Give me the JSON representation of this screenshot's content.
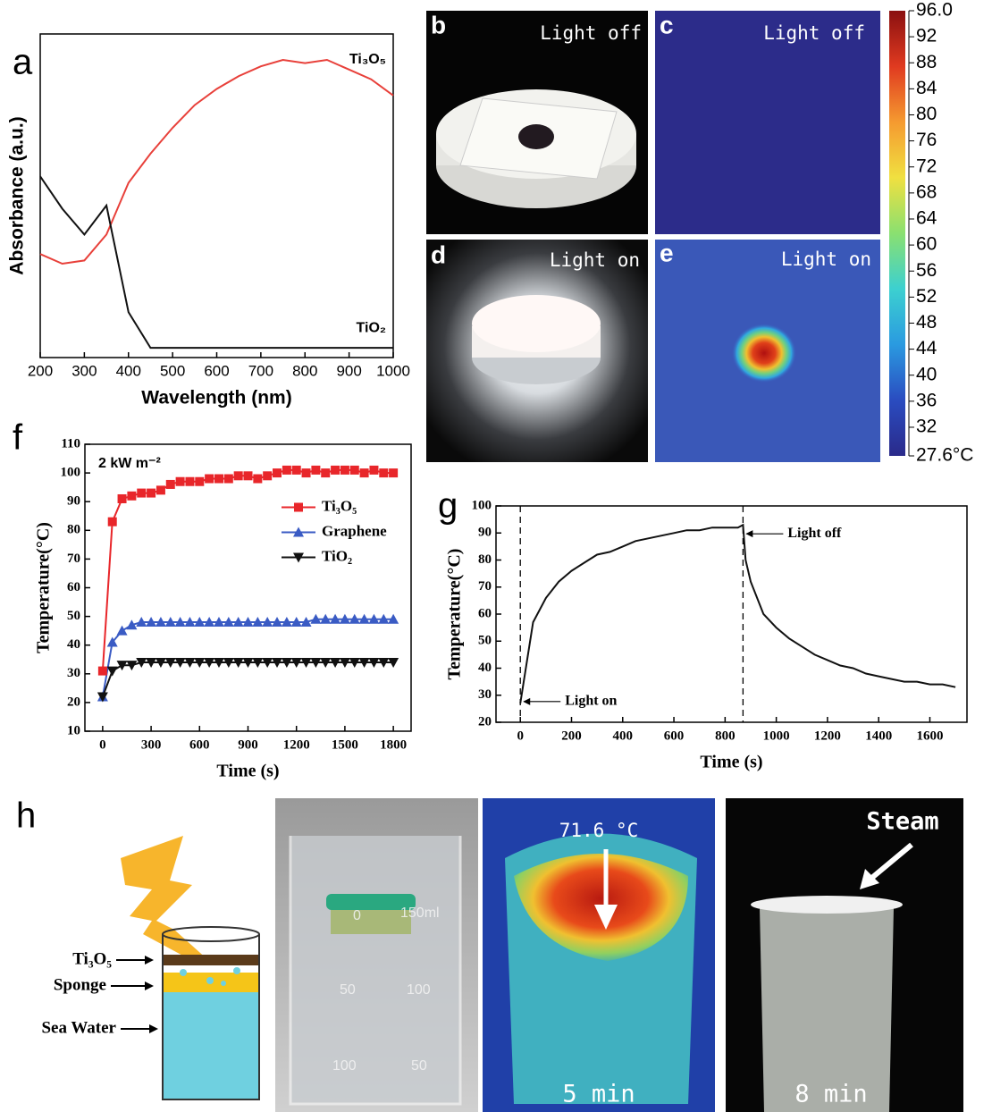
{
  "panel_labels": [
    "a",
    "b",
    "c",
    "d",
    "e",
    "f",
    "g",
    "h"
  ],
  "photos": {
    "b": {
      "label": "Light off"
    },
    "c": {
      "label": "Light off"
    },
    "d": {
      "label": "Light on"
    },
    "e": {
      "label": "Light on"
    }
  },
  "schematic": {
    "labels": [
      "Ti₃O₅",
      "Sponge",
      "Sea Water"
    ]
  },
  "beaker_photo": {
    "marks": [
      "0",
      "150ml",
      "50",
      "100",
      "100",
      "50"
    ]
  },
  "thermal_photo": {
    "temperature": "71.6 °C",
    "time": "5 min"
  },
  "steam_photo": {
    "label": "Steam",
    "time": "8 min"
  },
  "chart_data": [
    {
      "type": "line",
      "xlabel": "Wavelength (nm)",
      "ylabel": "Absorbance (a.u.)",
      "legend": "inline",
      "x": [
        200,
        250,
        300,
        350,
        400,
        450,
        500,
        550,
        600,
        650,
        700,
        750,
        800,
        850,
        900,
        950,
        1000
      ],
      "xlim": [
        200,
        1000
      ],
      "xticks": [
        200,
        300,
        400,
        500,
        600,
        700,
        800,
        900,
        1000
      ],
      "ylim": [
        0,
        1
      ],
      "series": [
        {
          "name": "Ti₃O₅",
          "color": "#e8403a",
          "values": [
            0.32,
            0.29,
            0.3,
            0.38,
            0.54,
            0.63,
            0.71,
            0.78,
            0.83,
            0.87,
            0.9,
            0.92,
            0.91,
            0.92,
            0.89,
            0.86,
            0.81
          ]
        },
        {
          "name": "TiO₂",
          "color": "#111111",
          "values": [
            0.56,
            0.46,
            0.38,
            0.47,
            0.14,
            0.03,
            0.03,
            0.03,
            0.03,
            0.03,
            0.03,
            0.03,
            0.03,
            0.03,
            0.03,
            0.03,
            0.03
          ]
        }
      ]
    },
    {
      "type": "line",
      "xlabel": "Time (s)",
      "ylabel": "Temperature(°C)",
      "annotations": [
        "2 kW m⁻²"
      ],
      "legend": "center right",
      "x": [
        0,
        60,
        120,
        180,
        240,
        300,
        360,
        420,
        480,
        540,
        600,
        660,
        720,
        780,
        840,
        900,
        960,
        1020,
        1080,
        1140,
        1200,
        1260,
        1320,
        1380,
        1440,
        1500,
        1560,
        1620,
        1680,
        1740,
        1800
      ],
      "xlim": [
        -110,
        1910
      ],
      "xticks": [
        0,
        300,
        600,
        900,
        1200,
        1500,
        1800
      ],
      "ylim": [
        10,
        110
      ],
      "yticks": [
        10,
        20,
        30,
        40,
        50,
        60,
        70,
        80,
        90,
        100,
        110
      ],
      "series": [
        {
          "name": "Ti₃O₅",
          "color": "#e8262a",
          "marker": "square",
          "values": [
            31,
            83,
            91,
            92,
            93,
            93,
            94,
            96,
            97,
            97,
            97,
            98,
            98,
            98,
            99,
            99,
            98,
            99,
            100,
            101,
            101,
            100,
            101,
            100,
            101,
            101,
            101,
            100,
            101,
            100,
            100
          ]
        },
        {
          "name": "Graphene",
          "color": "#3a5bc4",
          "marker": "triangle-up",
          "values": [
            22,
            41,
            45,
            47,
            48,
            48,
            48,
            48,
            48,
            48,
            48,
            48,
            48,
            48,
            48,
            48,
            48,
            48,
            48,
            48,
            48,
            48,
            49,
            49,
            49,
            49,
            49,
            49,
            49,
            49,
            49
          ]
        },
        {
          "name": "TiO₂",
          "color": "#111111",
          "marker": "triangle-down",
          "values": [
            22,
            31,
            33,
            33,
            34,
            34,
            34,
            34,
            34,
            34,
            34,
            34,
            34,
            34,
            34,
            34,
            34,
            34,
            34,
            34,
            34,
            34,
            34,
            34,
            34,
            34,
            34,
            34,
            34,
            34,
            34
          ]
        }
      ]
    },
    {
      "type": "line",
      "xlabel": "Time (s)",
      "ylabel": "Temperature(°C)",
      "color": "#111111",
      "annotations": [
        "Light on",
        "Light off"
      ],
      "vlines": [
        0,
        870
      ],
      "x": [
        0,
        50,
        100,
        150,
        200,
        250,
        300,
        350,
        400,
        450,
        500,
        550,
        600,
        650,
        700,
        750,
        800,
        850,
        870,
        880,
        900,
        950,
        1000,
        1050,
        1100,
        1150,
        1200,
        1250,
        1300,
        1350,
        1400,
        1450,
        1500,
        1550,
        1600,
        1650,
        1700
      ],
      "values": [
        27,
        57,
        66,
        72,
        76,
        79,
        82,
        83,
        85,
        87,
        88,
        89,
        90,
        91,
        91,
        92,
        92,
        92,
        93,
        80,
        72,
        60,
        55,
        51,
        48,
        45,
        43,
        41,
        40,
        38,
        37,
        36,
        35,
        35,
        34,
        34,
        33
      ],
      "xlim": [
        -95,
        1745
      ],
      "xticks": [
        0,
        200,
        400,
        600,
        800,
        1000,
        1200,
        1400,
        1600
      ],
      "ylim": [
        20,
        100
      ],
      "yticks": [
        20,
        30,
        40,
        50,
        60,
        70,
        80,
        90,
        100
      ]
    },
    {
      "type": "colorbar",
      "zlim": [
        27.6,
        96
      ],
      "colors": [
        "#2a2a8a",
        "#2a4cc0",
        "#2a9ae0",
        "#3cd0d0",
        "#8ae070",
        "#f0e040",
        "#f59a30",
        "#e03a20",
        "#8a1010"
      ],
      "zticks": [
        {
          "value": 96,
          "label": "96.0"
        },
        92,
        88,
        84,
        80,
        76,
        72,
        68,
        64,
        60,
        56,
        52,
        48,
        44,
        40,
        36,
        32,
        {
          "value": 27.6,
          "label": "27.6°C"
        }
      ]
    }
  ]
}
